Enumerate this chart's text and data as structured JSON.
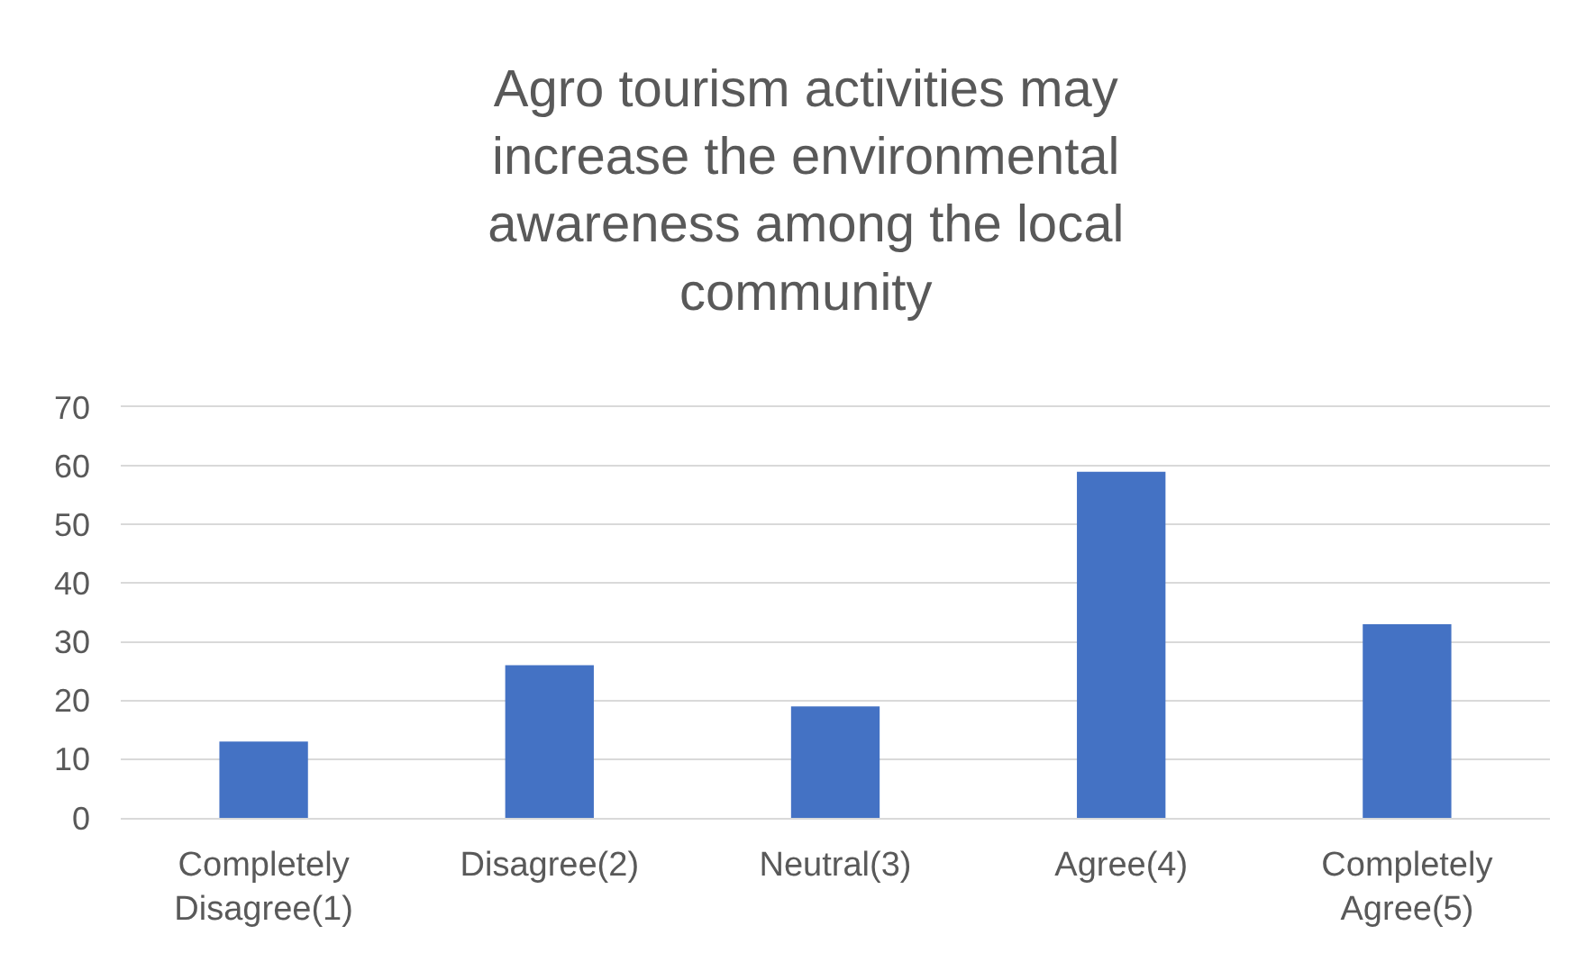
{
  "chart_data": {
    "type": "bar",
    "title": "Agro tourism activities may increase the environmental awareness among the local community",
    "categories": [
      "Completely Disagree(1)",
      "Disagree(2)",
      "Neutral(3)",
      "Agree(4)",
      "Completely Agree(5)"
    ],
    "values": [
      13,
      26,
      19,
      59,
      33
    ],
    "color": "#4472c4",
    "ylim": [
      0,
      70
    ],
    "yticks": [
      0,
      10,
      20,
      30,
      40,
      50,
      60,
      70
    ],
    "grid": "y"
  }
}
